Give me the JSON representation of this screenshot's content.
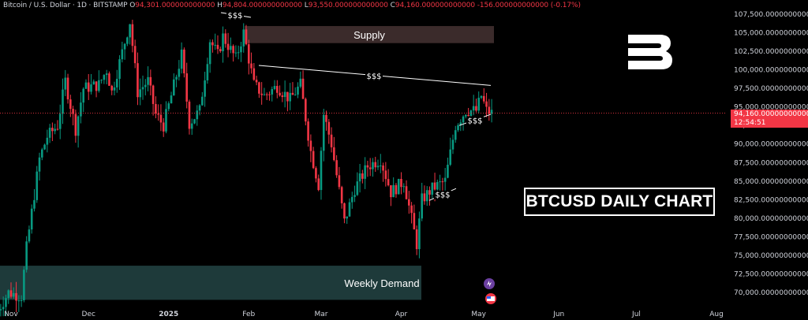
{
  "header": {
    "symbol": "Bitcoin / U.S. Dollar · 1D · BITSTAMP",
    "o_label": "O",
    "o": "94,301.000000000000",
    "h_label": "H",
    "h": "94,804.000000000000",
    "l_label": "L",
    "l": "93,550.000000000000",
    "c_label": "C",
    "c": "94,160.000000000000",
    "change": "-156.000000000000 (-0.17%)"
  },
  "colors": {
    "up": "#089981",
    "down": "#f23645",
    "background": "#000000",
    "text": "#d1d4dc",
    "zone": "#3b2b2b",
    "demand": "#1e3a3a"
  },
  "chart_data": {
    "type": "candlestick",
    "title": "BTCUSD DAILY CHART",
    "x_ticks": [
      "Nov",
      "Dec",
      "2025",
      "Feb",
      "Mar",
      "Apr",
      "May",
      "Jun",
      "Jul",
      "Aug"
    ],
    "y_ticks": [
      "107,500.000000000000",
      "105,000.000000000000",
      "102,500.000000000000",
      "100,000.000000000000",
      "97,500.000000000000",
      "95,000.000000000000",
      "92,500.000000000000",
      "90,000.000000000000",
      "87,500.000000000000",
      "85,000.000000000000",
      "82,500.000000000000",
      "80,000.000000000000",
      "77,500.000000000000",
      "75,000.000000000000",
      "72,500.000000000000",
      "70,000.000000000000"
    ],
    "ylim": [
      68000,
      109000
    ],
    "last_price": "94,160.000000000000",
    "countdown": "12:54:51",
    "zones": [
      {
        "name": "Supply",
        "low": 103600,
        "high": 105900
      },
      {
        "name": "Weekly Demand",
        "low": 69000,
        "high": 73600
      }
    ],
    "liquidity_labels": [
      "$$$",
      "$$$",
      "$$$",
      "$$$"
    ],
    "close_path": [
      [
        "2024-10-26",
        67000
      ],
      [
        "2024-10-31",
        70000
      ],
      [
        "2024-11-05",
        69500
      ],
      [
        "2024-11-07",
        76000
      ],
      [
        "2024-11-12",
        88000
      ],
      [
        "2024-11-15",
        91000
      ],
      [
        "2024-11-19",
        92500
      ],
      [
        "2024-11-22",
        98500
      ],
      [
        "2024-11-26",
        92000
      ],
      [
        "2024-11-29",
        97500
      ],
      [
        "2024-12-05",
        98000
      ],
      [
        "2024-12-08",
        100000
      ],
      [
        "2024-12-10",
        97000
      ],
      [
        "2024-12-13",
        101000
      ],
      [
        "2024-12-17",
        106500
      ],
      [
        "2024-12-20",
        97000
      ],
      [
        "2024-12-24",
        98500
      ],
      [
        "2024-12-27",
        94000
      ],
      [
        "2024-12-30",
        92500
      ],
      [
        "2025-01-02",
        96500
      ],
      [
        "2025-01-06",
        102000
      ],
      [
        "2025-01-09",
        92800
      ],
      [
        "2025-01-13",
        94500
      ],
      [
        "2025-01-17",
        104000
      ],
      [
        "2025-01-20",
        102000
      ],
      [
        "2025-01-22",
        104500
      ],
      [
        "2025-01-27",
        101500
      ],
      [
        "2025-01-30",
        105000
      ],
      [
        "2025-02-03",
        98000
      ],
      [
        "2025-02-07",
        96500
      ],
      [
        "2025-02-12",
        97800
      ],
      [
        "2025-02-17",
        96000
      ],
      [
        "2025-02-21",
        98000
      ],
      [
        "2025-02-25",
        89000
      ],
      [
        "2025-02-28",
        84500
      ],
      [
        "2025-03-02",
        94000
      ],
      [
        "2025-03-05",
        90000
      ],
      [
        "2025-03-10",
        79500
      ],
      [
        "2025-03-14",
        84000
      ],
      [
        "2025-03-19",
        87000
      ],
      [
        "2025-03-24",
        88000
      ],
      [
        "2025-03-28",
        83500
      ],
      [
        "2025-04-02",
        85000
      ],
      [
        "2025-04-07",
        76500
      ],
      [
        "2025-04-09",
        82500
      ],
      [
        "2025-04-13",
        84000
      ],
      [
        "2025-04-18",
        85000
      ],
      [
        "2025-04-22",
        92500
      ],
      [
        "2025-04-26",
        94500
      ],
      [
        "2025-04-30",
        94500
      ],
      [
        "2025-05-02",
        96500
      ],
      [
        "2025-05-04",
        94500
      ],
      [
        "2025-05-06",
        94160
      ]
    ]
  },
  "icons": [
    "spark-icon",
    "us-flag-icon"
  ]
}
